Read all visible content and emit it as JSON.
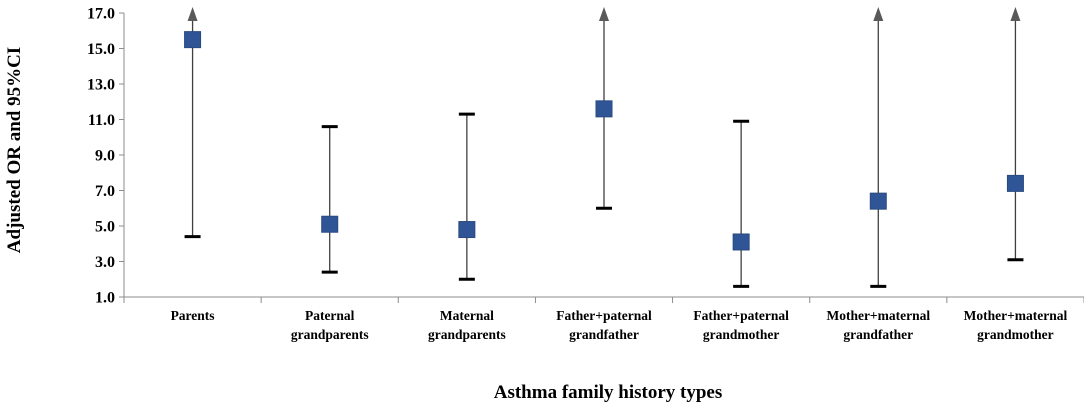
{
  "chart_data": {
    "type": "scatter",
    "xlabel": "Asthma family history types",
    "ylabel": "Adjusted OR and 95%CI",
    "ylim": [
      1.0,
      17.0
    ],
    "yticks": [
      "1.0",
      "3.0",
      "5.0",
      "7.0",
      "9.0",
      "11.0",
      "13.0",
      "15.0",
      "17.0"
    ],
    "grid": false,
    "marker_color": "#2F5597",
    "categories": [
      {
        "line1": "Parents",
        "line2": "",
        "or": 15.5,
        "lower": 4.4,
        "upper": 17.0,
        "upper_truncated": true
      },
      {
        "line1": "Paternal",
        "line2": "grandparents",
        "or": 5.1,
        "lower": 2.4,
        "upper": 10.6,
        "upper_truncated": false
      },
      {
        "line1": "Maternal",
        "line2": "grandparents",
        "or": 4.8,
        "lower": 2.0,
        "upper": 11.3,
        "upper_truncated": false
      },
      {
        "line1": "Father+paternal",
        "line2": "grandfather",
        "or": 11.6,
        "lower": 6.0,
        "upper": 17.0,
        "upper_truncated": true
      },
      {
        "line1": "Father+paternal",
        "line2": "grandmother",
        "or": 4.1,
        "lower": 1.6,
        "upper": 10.9,
        "upper_truncated": false
      },
      {
        "line1": "Mother+maternal",
        "line2": "grandfather",
        "or": 6.4,
        "lower": 1.6,
        "upper": 17.0,
        "upper_truncated": true
      },
      {
        "line1": "Mother+maternal",
        "line2": "grandmother",
        "or": 7.4,
        "lower": 3.1,
        "upper": 17.0,
        "upper_truncated": true
      }
    ]
  }
}
